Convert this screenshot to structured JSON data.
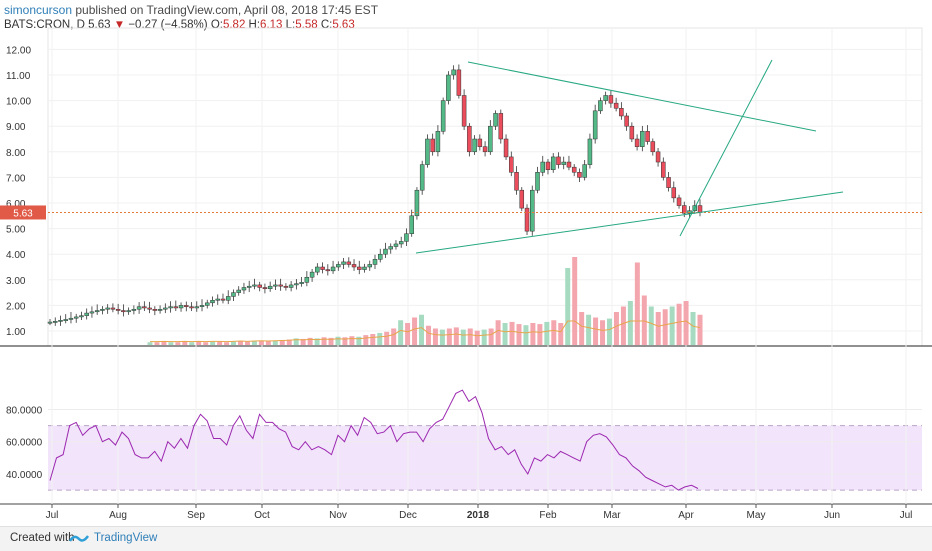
{
  "header": {
    "author": "simoncurson",
    "published_text": "published on TradingView.com, April 08, 2018 17:45 EST",
    "symbol": "BATS:CRON, D",
    "last": "5.63",
    "change": "−0.27 (−4.58%)",
    "o_label": "O:",
    "o_val": "5.82",
    "h_label": "H:",
    "h_val": "6.13",
    "l_label": "L:",
    "l_val": "5.58",
    "c_label": "C:",
    "c_val": "5.63"
  },
  "footer": {
    "created_with": "Created with",
    "brand": "TradingView"
  },
  "colors": {
    "up": "#53b987",
    "down": "#eb4d5c",
    "line": "#26a882",
    "rsi": "#9c27b0",
    "rsi_band": "#f2e5fb",
    "price_line": "#e57a35"
  },
  "chart_data": {
    "type": "candlestick",
    "price_axis": {
      "ticks": [
        "1.00",
        "2.00",
        "3.00",
        "4.00",
        "5.00",
        "6.00",
        "7.00",
        "8.00",
        "9.00",
        "10.00",
        "11.00",
        "12.00"
      ],
      "last_price_label": "5.63"
    },
    "rsi_axis": {
      "ticks": [
        "40.0000",
        "60.0000",
        "80.0000"
      ],
      "band_upper": 70,
      "band_lower": 30
    },
    "time_axis": [
      "Jul",
      "Aug",
      "Sep",
      "Oct",
      "Nov",
      "Dec",
      "2018",
      "Feb",
      "Mar",
      "Apr",
      "May",
      "Jun",
      "Jul"
    ],
    "price_series": [
      1.35,
      1.38,
      1.42,
      1.45,
      1.5,
      1.55,
      1.6,
      1.7,
      1.75,
      1.8,
      1.85,
      1.9,
      1.85,
      1.8,
      1.75,
      1.8,
      1.85,
      1.95,
      1.9,
      1.85,
      1.8,
      1.85,
      1.9,
      1.95,
      1.9,
      2.0,
      1.95,
      1.9,
      1.95,
      2.0,
      2.1,
      2.2,
      2.25,
      2.2,
      2.35,
      2.5,
      2.6,
      2.7,
      2.75,
      2.8,
      2.7,
      2.65,
      2.75,
      2.8,
      2.75,
      2.7,
      2.8,
      2.85,
      2.9,
      3.1,
      3.3,
      3.5,
      3.4,
      3.35,
      3.5,
      3.6,
      3.7,
      3.6,
      3.5,
      3.4,
      3.5,
      3.6,
      3.8,
      4.0,
      4.2,
      4.3,
      4.4,
      4.5,
      4.8,
      5.5,
      6.5,
      7.5,
      8.5,
      8.0,
      8.8,
      10.0,
      11.0,
      11.2,
      10.2,
      9.0,
      8.0,
      8.5,
      8.2,
      8.0,
      9.0,
      9.5,
      8.5,
      7.8,
      7.2,
      6.5,
      5.8,
      4.9,
      6.5,
      7.2,
      7.6,
      7.3,
      7.8,
      7.5,
      7.6,
      7.4,
      7.2,
      7.0,
      7.5,
      8.5,
      9.6,
      10.0,
      10.2,
      9.9,
      9.7,
      9.4,
      9.0,
      8.5,
      8.2,
      8.8,
      8.4,
      8.0,
      7.6,
      7.0,
      6.6,
      6.2,
      5.9,
      5.6,
      5.7,
      5.9,
      5.63
    ],
    "volume_series": [
      0.05,
      0.05,
      0.06,
      0.05,
      0.05,
      0.06,
      0.05,
      0.06,
      0.05,
      0.06,
      0.06,
      0.05,
      0.06,
      0.07,
      0.06,
      0.07,
      0.08,
      0.07,
      0.08,
      0.09,
      0.1,
      0.12,
      0.11,
      0.13,
      0.12,
      0.14,
      0.13,
      0.15,
      0.14,
      0.16,
      0.15,
      0.18,
      0.2,
      0.22,
      0.24,
      0.3,
      0.45,
      0.4,
      0.5,
      0.55,
      0.35,
      0.3,
      0.28,
      0.3,
      0.32,
      0.28,
      0.3,
      0.26,
      0.28,
      0.3,
      0.45,
      0.4,
      0.42,
      0.38,
      0.36,
      0.4,
      0.38,
      0.42,
      0.45,
      0.4,
      1.4,
      1.6,
      0.6,
      0.55,
      0.5,
      0.45,
      0.48,
      0.6,
      0.7,
      0.8,
      1.5,
      0.9,
      0.7,
      0.6,
      0.65,
      0.7,
      0.75,
      0.8,
      0.6,
      0.55
    ],
    "rsi_series": [
      36,
      50,
      52,
      70,
      72,
      64,
      68,
      70,
      60,
      62,
      58,
      66,
      62,
      52,
      50,
      50,
      54,
      48,
      60,
      56,
      62,
      56,
      70,
      77,
      73,
      62,
      62,
      58,
      70,
      76,
      67,
      62,
      77,
      72,
      72,
      68,
      66,
      57,
      55,
      60,
      55,
      57,
      55,
      52,
      64,
      60,
      70,
      64,
      75,
      72,
      65,
      66,
      70,
      60,
      65,
      66,
      66,
      60,
      68,
      72,
      74,
      82,
      90,
      92,
      85,
      88,
      78,
      62,
      55,
      57,
      52,
      55,
      46,
      40,
      50,
      48,
      52,
      50,
      54,
      52,
      50,
      48,
      60,
      64,
      65,
      63,
      58,
      52,
      50,
      45,
      42,
      38,
      36,
      34,
      32,
      33,
      30,
      32,
      33,
      31
    ]
  }
}
